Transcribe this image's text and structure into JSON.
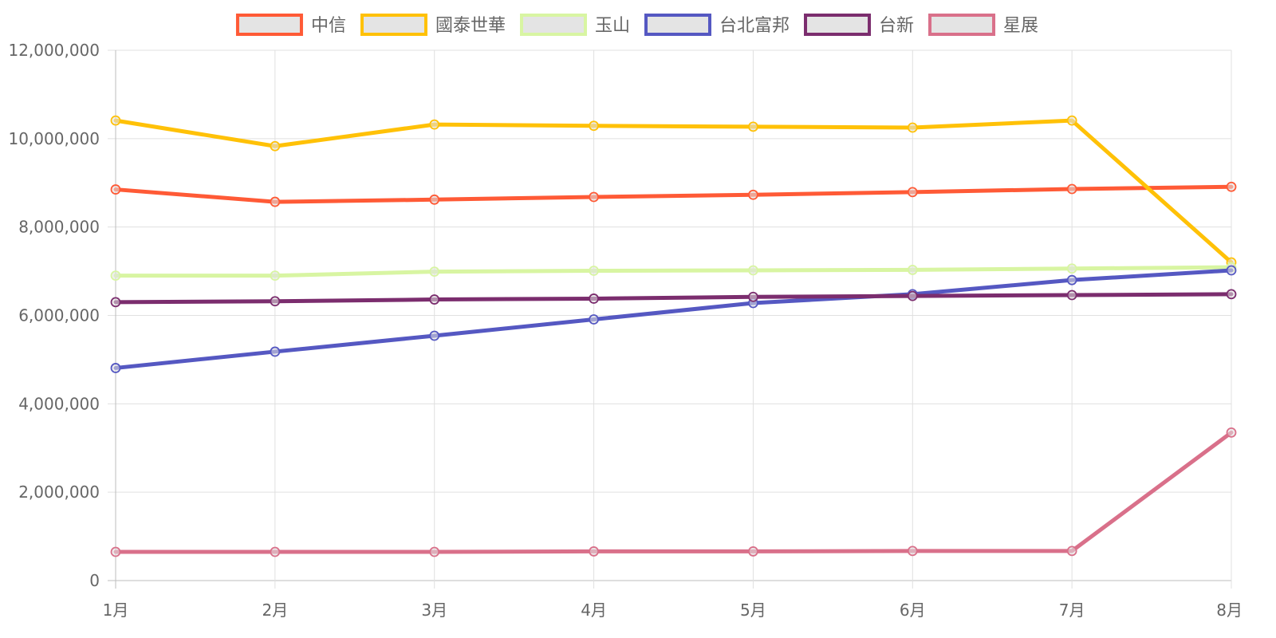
{
  "chart_data": {
    "type": "line",
    "categories": [
      "1月",
      "2月",
      "3月",
      "4月",
      "5月",
      "6月",
      "7月",
      "8月"
    ],
    "ylim": [
      0,
      12000000
    ],
    "y_ticks": [
      "0",
      "2,000,000",
      "4,000,000",
      "6,000,000",
      "8,000,000",
      "10,000,000",
      "12,000,000"
    ],
    "grid": true,
    "legend_position": "top",
    "series": [
      {
        "name": "中信",
        "color": "#ff5a36",
        "values": [
          8850000,
          8570000,
          8620000,
          8680000,
          8730000,
          8790000,
          8860000,
          8910000
        ]
      },
      {
        "name": "國泰世華",
        "color": "#ffc107",
        "values": [
          10410000,
          9830000,
          10320000,
          10290000,
          10270000,
          10250000,
          10410000,
          7200000
        ]
      },
      {
        "name": "玉山",
        "color": "#d8f5a2",
        "values": [
          6900000,
          6900000,
          6990000,
          7010000,
          7020000,
          7030000,
          7060000,
          7090000
        ]
      },
      {
        "name": "台北富邦",
        "color": "#5558c2",
        "values": [
          4810000,
          5180000,
          5540000,
          5910000,
          6280000,
          6480000,
          6800000,
          7020000
        ]
      },
      {
        "name": "台新",
        "color": "#7b2d6e",
        "values": [
          6300000,
          6320000,
          6360000,
          6380000,
          6420000,
          6440000,
          6460000,
          6480000
        ]
      },
      {
        "name": "星展",
        "color": "#d9708a",
        "values": [
          650000,
          650000,
          650000,
          660000,
          660000,
          670000,
          670000,
          3350000
        ]
      }
    ]
  }
}
